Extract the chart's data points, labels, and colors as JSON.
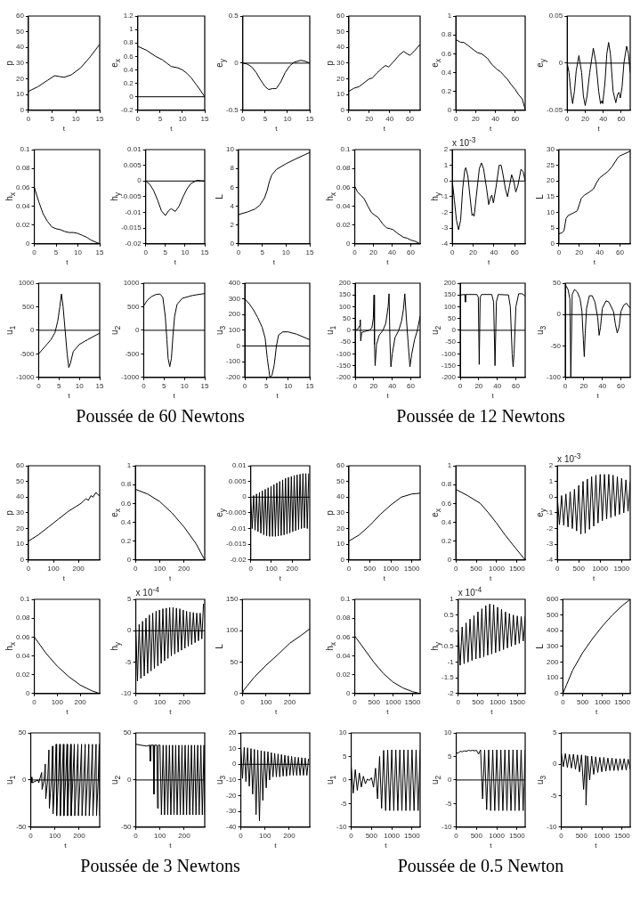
{
  "chart_data": [
    {
      "type": "line",
      "xlabel": "t",
      "ylabel": "p",
      "xlim": [
        0,
        15
      ],
      "xticks": [
        0,
        5,
        10,
        15
      ],
      "ylim": [
        0,
        60
      ],
      "yticks": [
        0,
        10,
        20,
        30,
        40,
        50,
        60
      ],
      "color": "#000000",
      "x": [
        0,
        2,
        4,
        5.5,
        6.5,
        7.5,
        9,
        11,
        13,
        15
      ],
      "values": [
        12,
        15,
        19,
        22,
        21.5,
        21,
        22.5,
        27,
        34,
        42
      ]
    },
    {
      "type": "line",
      "xlabel": "t",
      "ylabel": "e$_{x}$",
      "xlim": [
        0,
        15
      ],
      "xticks": [
        0,
        5,
        10,
        15
      ],
      "ylim": [
        -0.2,
        1.2
      ],
      "yticks": [
        -0.2,
        0,
        0.2,
        0.4,
        0.6,
        0.8,
        1,
        1.2
      ],
      "ref_lines": [
        {
          "axis": "y",
          "value": 0
        }
      ],
      "color": "#000000",
      "x": [
        0,
        2,
        4,
        5.5,
        6.5,
        7.5,
        9,
        10,
        11,
        12,
        13,
        14,
        15
      ],
      "values": [
        0.75,
        0.69,
        0.6,
        0.55,
        0.5,
        0.45,
        0.43,
        0.4,
        0.35,
        0.28,
        0.19,
        0.1,
        0
      ]
    },
    {
      "type": "line",
      "xlabel": "t",
      "ylabel": "e$_{y}$",
      "xlim": [
        0,
        15
      ],
      "xticks": [
        0,
        5,
        10,
        15
      ],
      "ylim": [
        -0.5,
        0.5
      ],
      "yticks": [
        -0.5,
        0,
        0.5
      ],
      "ref_lines": [
        {
          "axis": "y",
          "value": 0
        }
      ],
      "color": "#000000",
      "x": [
        0,
        1,
        2,
        3,
        4,
        5,
        5.8,
        6.7,
        7.5,
        8.5,
        9.5,
        10.5,
        11.5,
        13,
        14,
        15
      ],
      "values": [
        0,
        -0.01,
        -0.04,
        -0.1,
        -0.18,
        -0.25,
        -0.28,
        -0.27,
        -0.27,
        -0.2,
        -0.1,
        -0.03,
        0.01,
        0.03,
        0.02,
        0
      ]
    },
    {
      "type": "line",
      "xlabel": "t",
      "ylabel": "h$_{x}$",
      "xlim": [
        0,
        15
      ],
      "xticks": [
        0,
        5,
        10,
        15
      ],
      "ylim": [
        0,
        0.1
      ],
      "yticks": [
        0,
        0.02,
        0.04,
        0.06,
        0.08,
        0.1
      ],
      "color": "#000000",
      "x": [
        0,
        1,
        2,
        3,
        4,
        5,
        6,
        7,
        8,
        9,
        10,
        11,
        12,
        13,
        14,
        15
      ],
      "values": [
        0.06,
        0.045,
        0.032,
        0.024,
        0.018,
        0.016,
        0.015,
        0.013,
        0.012,
        0.012,
        0.011,
        0.009,
        0.007,
        0.004,
        0.002,
        0
      ]
    },
    {
      "type": "line",
      "xlabel": "t",
      "ylabel": "h$_{y}$",
      "xlim": [
        0,
        15
      ],
      "xticks": [
        0,
        5,
        10,
        15
      ],
      "ylim": [
        -0.02,
        0.01
      ],
      "yticks": [
        -0.02,
        -0.015,
        -0.01,
        -0.005,
        0,
        0.005,
        0.01
      ],
      "ref_lines": [
        {
          "axis": "y",
          "value": 0
        }
      ],
      "color": "#000000",
      "x": [
        0,
        1,
        2,
        3,
        4,
        5,
        5.8,
        6.5,
        7.5,
        8.5,
        9.5,
        10.5,
        11.5,
        13,
        14,
        15
      ],
      "values": [
        0,
        -0.001,
        -0.003,
        -0.006,
        -0.0095,
        -0.011,
        -0.0095,
        -0.0088,
        -0.0097,
        -0.008,
        -0.005,
        -0.0025,
        -0.0008,
        0.0002,
        0.0001,
        0
      ]
    },
    {
      "type": "line",
      "xlabel": "t",
      "ylabel": "L",
      "xlim": [
        0,
        15
      ],
      "xticks": [
        0,
        5,
        10,
        15
      ],
      "ylim": [
        0,
        10
      ],
      "yticks": [
        0,
        2,
        4,
        6,
        8,
        10
      ],
      "color": "#000000",
      "x": [
        0,
        2,
        3.5,
        4.5,
        5.5,
        6,
        6.5,
        7,
        8,
        10,
        12,
        15
      ],
      "values": [
        3.1,
        3.4,
        3.7,
        4.1,
        4.9,
        5.6,
        6.6,
        7.3,
        7.9,
        8.5,
        9,
        9.7
      ]
    },
    {
      "type": "line",
      "xlabel": "t",
      "ylabel": "u$_{1}$",
      "xlim": [
        0,
        15
      ],
      "xticks": [
        0,
        5,
        10,
        15
      ],
      "ylim": [
        -1000,
        1000
      ],
      "yticks": [
        -1000,
        -500,
        0,
        500,
        1000
      ],
      "ref_lines": [
        {
          "axis": "y",
          "value": 0
        }
      ],
      "color": "#000000",
      "x": [
        0,
        1,
        2,
        3,
        4,
        4.7,
        5.2,
        5.6,
        6,
        6.5,
        7,
        7.4,
        7.8,
        8.5,
        10,
        12,
        15
      ],
      "values": [
        -500,
        -400,
        -300,
        -200,
        -50,
        200,
        500,
        770,
        500,
        0,
        -500,
        -790,
        -700,
        -450,
        -300,
        -200,
        -60
      ]
    },
    {
      "type": "line",
      "title": "Poussée de 60 Newtons",
      "xlabel": "t",
      "ylabel": "u$_{2}$",
      "xlim": [
        0,
        15
      ],
      "xticks": [
        0,
        5,
        10,
        15
      ],
      "ylim": [
        -1000,
        1000
      ],
      "yticks": [
        -1000,
        -500,
        0,
        500,
        1000
      ],
      "ref_lines": [
        {
          "axis": "y",
          "value": 0
        }
      ],
      "color": "#000000",
      "x": [
        0,
        1,
        2,
        3,
        4,
        4.7,
        5.3,
        5.7,
        6,
        6.4,
        6.8,
        7.2,
        7.6,
        8.2,
        9.5,
        12,
        15
      ],
      "values": [
        520,
        650,
        720,
        760,
        770,
        700,
        300,
        -200,
        -600,
        -770,
        -600,
        -100,
        300,
        550,
        680,
        740,
        780
      ]
    },
    {
      "type": "line",
      "xlabel": "t",
      "ylabel": "u$_{3}$",
      "xlim": [
        0,
        15
      ],
      "xticks": [
        0,
        5,
        10,
        15
      ],
      "ylim": [
        -200,
        400
      ],
      "yticks": [
        -200,
        -100,
        0,
        100,
        200,
        300,
        400
      ],
      "ref_lines": [
        {
          "axis": "y",
          "value": 0
        }
      ],
      "color": "#000000",
      "x": [
        0,
        1,
        2,
        3,
        4,
        4.7,
        5.2,
        5.8,
        6.3,
        6.8,
        7.3,
        7.8,
        8.8,
        10,
        12,
        15
      ],
      "values": [
        300,
        270,
        230,
        180,
        120,
        50,
        -80,
        -200,
        -185,
        -120,
        0,
        70,
        90,
        90,
        75,
        40
      ]
    },
    {
      "type": "line",
      "xlabel": "t",
      "ylabel": "p",
      "xlim": [
        0,
        70
      ],
      "xticks": [
        0,
        20,
        40,
        60
      ],
      "ylim": [
        0,
        60
      ],
      "yticks": [
        0,
        10,
        20,
        30,
        40,
        50,
        60
      ],
      "color": "#000000",
      "x": [
        0,
        5,
        10,
        15,
        20,
        23,
        28,
        33,
        36,
        39,
        44,
        50,
        54,
        57,
        60,
        64,
        70
      ],
      "values": [
        12,
        14,
        15,
        17.5,
        20,
        20.5,
        24,
        27,
        28.5,
        27.5,
        31,
        35.5,
        37.5,
        36,
        35,
        37.5,
        42
      ]
    },
    {
      "type": "line",
      "xlabel": "t",
      "ylabel": "e$_{x}$",
      "xlim": [
        0,
        70
      ],
      "xticks": [
        0,
        20,
        40,
        60
      ],
      "ylim": [
        0,
        1
      ],
      "yticks": [
        0,
        0.2,
        0.4,
        0.6,
        0.8,
        1
      ],
      "color": "#000000",
      "x": [
        0,
        5,
        8,
        12,
        18,
        22,
        26,
        32,
        36,
        42,
        45,
        52,
        56,
        60,
        63,
        67,
        70
      ],
      "values": [
        0.75,
        0.72,
        0.72,
        0.69,
        0.64,
        0.61,
        0.6,
        0.55,
        0.49,
        0.43,
        0.41,
        0.33,
        0.27,
        0.22,
        0.17,
        0.12,
        0.01
      ]
    },
    {
      "type": "line",
      "xlabel": "t",
      "ylabel": "e$_{y}$",
      "xlim": [
        0,
        70
      ],
      "xticks": [
        0,
        20,
        40,
        60
      ],
      "ylim": [
        -0.05,
        0.05
      ],
      "yticks": [
        -0.05,
        0,
        0.05
      ],
      "ref_lines": [
        {
          "axis": "y",
          "value": 0
        }
      ],
      "color": "#000000",
      "x": [
        0,
        2,
        4,
        6,
        8,
        10,
        13,
        16,
        18,
        20,
        22,
        25,
        29,
        32,
        35,
        37,
        38.5,
        39.5,
        42,
        44,
        46,
        48,
        51,
        54,
        56,
        57.5,
        59,
        61,
        63,
        66,
        68,
        70
      ],
      "values": [
        0,
        -0.01,
        -0.03,
        -0.043,
        -0.03,
        -0.008,
        0.008,
        -0.01,
        -0.035,
        -0.045,
        -0.035,
        -0.01,
        0.016,
        0,
        -0.03,
        -0.043,
        -0.04,
        -0.043,
        -0.02,
        0.01,
        0.022,
        0.01,
        -0.03,
        -0.042,
        -0.033,
        -0.031,
        -0.037,
        -0.025,
        0,
        0.018,
        0.01,
        -0.01
      ]
    },
    {
      "type": "line",
      "xlabel": "t",
      "ylabel": "h$_{x}$",
      "xlim": [
        0,
        70
      ],
      "xticks": [
        0,
        20,
        40,
        60
      ],
      "ylim": [
        0,
        0.1
      ],
      "yticks": [
        0,
        0.02,
        0.04,
        0.06,
        0.08,
        0.1
      ],
      "color": "#000000",
      "x": [
        0,
        3,
        7,
        10,
        14,
        18,
        22,
        25,
        30,
        34,
        38,
        41,
        46,
        52,
        56,
        60,
        64,
        70
      ],
      "values": [
        0.061,
        0.055,
        0.051,
        0.048,
        0.04,
        0.033,
        0.03,
        0.028,
        0.021,
        0.017,
        0.016,
        0.015,
        0.011,
        0.007,
        0.006,
        0.004,
        0.003,
        0
      ]
    },
    {
      "type": "line",
      "xlabel": "t",
      "ylabel": "h$_{y}$",
      "annotations": [
        "x 10$^{-3}$"
      ],
      "xlim": [
        0,
        70
      ],
      "xticks": [
        0,
        20,
        40,
        60
      ],
      "ylim": [
        -4,
        2
      ],
      "yticks": [
        -4,
        -3,
        -2,
        -1,
        0,
        1,
        2
      ],
      "ref_lines": [
        {
          "axis": "y",
          "value": 0
        }
      ],
      "color": "#000000",
      "x": [
        0,
        2,
        4,
        6,
        8,
        10,
        12,
        13,
        15,
        17,
        19,
        20,
        21,
        23,
        26,
        28,
        30,
        33,
        35,
        37,
        38,
        39.5,
        42,
        45,
        47,
        49,
        51,
        53,
        55,
        57,
        59,
        61,
        63,
        66,
        68,
        70
      ],
      "values": [
        0,
        -1.2,
        -2.5,
        -3.1,
        -2.5,
        -0.5,
        0.7,
        0.85,
        0.3,
        -1,
        -2.2,
        -2.1,
        -2.25,
        -1,
        0.8,
        1.15,
        0.8,
        -0.5,
        -1.5,
        -1,
        -0.9,
        -1.4,
        -0.4,
        1,
        1,
        0.3,
        -0.5,
        -1,
        -0.3,
        0.4,
        0,
        -0.7,
        -0.3,
        0.75,
        0.6,
        0
      ]
    },
    {
      "type": "line",
      "xlabel": "t",
      "ylabel": "L",
      "xlim": [
        0,
        70
      ],
      "xticks": [
        0,
        20,
        40,
        60
      ],
      "ylim": [
        0,
        30
      ],
      "yticks": [
        0,
        5,
        10,
        15,
        20,
        25,
        30
      ],
      "color": "#000000",
      "x": [
        0,
        3,
        5,
        7,
        9,
        14,
        18,
        20,
        22,
        25,
        30,
        34,
        37,
        40,
        44,
        48,
        52,
        55,
        58,
        60,
        70
      ],
      "values": [
        3.2,
        3.5,
        4.2,
        8,
        9,
        9.8,
        10.5,
        12.5,
        14.5,
        15.5,
        16.5,
        17.5,
        19.5,
        21,
        22,
        23,
        24.5,
        26,
        27.5,
        28,
        29.5
      ]
    },
    {
      "type": "line",
      "xlabel": "t",
      "ylabel": "u$_{1}$",
      "xlim": [
        0,
        70
      ],
      "xticks": [
        0,
        20,
        40,
        60
      ],
      "ylim": [
        -200,
        200
      ],
      "yticks": [
        -200,
        -150,
        -100,
        -50,
        0,
        50,
        100,
        150,
        200
      ],
      "ref_lines": [
        {
          "axis": "y",
          "value": 0
        }
      ],
      "color": "#000000",
      "x": [
        0,
        3,
        5,
        5.5,
        6,
        7,
        10,
        15,
        18,
        19.5,
        20.3,
        20.8,
        21.5,
        23,
        26,
        30,
        33,
        35.5,
        36.5,
        37.5,
        38.5,
        40,
        43,
        47,
        50,
        52,
        53.5,
        55,
        57,
        59,
        61,
        64,
        67,
        70
      ],
      "values": [
        0,
        5,
        20,
        45,
        -45,
        -10,
        -5,
        0,
        10,
        50,
        150,
        -60,
        -150,
        -60,
        -20,
        0,
        30,
        100,
        155,
        -50,
        -155,
        -100,
        -30,
        0,
        40,
        90,
        155,
        60,
        -50,
        -155,
        -100,
        -40,
        0,
        60
      ]
    },
    {
      "type": "line",
      "title": "Poussée de 12 Newtons",
      "xlabel": "t",
      "ylabel": "u$_{2}$",
      "xlim": [
        0,
        70
      ],
      "xticks": [
        0,
        20,
        40,
        60
      ],
      "ylim": [
        -200,
        200
      ],
      "yticks": [
        -200,
        -150,
        -100,
        -50,
        0,
        50,
        100,
        150,
        200
      ],
      "ref_lines": [
        {
          "axis": "y",
          "value": 0
        }
      ],
      "color": "#000000",
      "x": [
        0,
        5,
        5.6,
        6.2,
        18,
        19.5,
        20.5,
        21.5,
        23,
        34,
        36,
        37.5,
        39,
        41,
        52,
        54,
        56,
        57,
        58,
        60,
        63,
        67,
        70
      ],
      "values": [
        150,
        152,
        120,
        152,
        152,
        140,
        -145,
        140,
        152,
        152,
        120,
        -150,
        120,
        152,
        150,
        100,
        -100,
        -155,
        -100,
        100,
        155,
        155,
        145
      ]
    },
    {
      "type": "line",
      "xlabel": "t",
      "ylabel": "u$_{3}$",
      "xlim": [
        0,
        70
      ],
      "xticks": [
        0,
        20,
        40,
        60
      ],
      "ylim": [
        -100,
        50
      ],
      "yticks": [
        -100,
        -50,
        0,
        50
      ],
      "ref_lines": [
        {
          "axis": "y",
          "value": 0
        }
      ],
      "color": "#000000",
      "x": [
        0,
        3,
        5,
        6,
        7.5,
        10,
        13,
        16,
        18,
        19.5,
        20.5,
        21.5,
        23,
        26,
        29,
        32,
        35,
        36.5,
        38,
        40,
        44,
        47,
        52,
        54,
        56,
        58,
        60,
        63,
        66,
        70
      ],
      "values": [
        48,
        40,
        25,
        -100,
        32,
        40,
        36,
        25,
        5,
        -40,
        -67,
        -30,
        10,
        30,
        30,
        20,
        -5,
        -33,
        -20,
        10,
        22,
        20,
        5,
        -15,
        -29,
        -20,
        5,
        15,
        18,
        10
      ]
    },
    {
      "type": "line",
      "xlabel": "t",
      "ylabel": "p",
      "xlim": [
        0,
        285
      ],
      "xticks": [
        0,
        100,
        200
      ],
      "ylim": [
        0,
        60
      ],
      "yticks": [
        0,
        10,
        20,
        30,
        40,
        50,
        60
      ],
      "color": "#000000",
      "x": [
        0,
        40,
        80,
        120,
        160,
        190,
        210,
        230,
        240,
        250,
        258,
        270,
        278,
        285
      ],
      "values": [
        12,
        16,
        21,
        26,
        31,
        34,
        36,
        39,
        38,
        41,
        40,
        43,
        41.5,
        41
      ]
    },
    {
      "type": "line",
      "xlabel": "t",
      "ylabel": "e$_{x}$",
      "xlim": [
        0,
        285
      ],
      "xticks": [
        0,
        100,
        200
      ],
      "ylim": [
        0,
        1
      ],
      "yticks": [
        0,
        0.2,
        0.4,
        0.6,
        0.8,
        1
      ],
      "color": "#000000",
      "x": [
        0,
        50,
        100,
        150,
        200,
        250,
        285
      ],
      "values": [
        0.75,
        0.7,
        0.62,
        0.5,
        0.35,
        0.17,
        0
      ]
    },
    {
      "type": "line",
      "xlabel": "t",
      "ylabel": "e$_{y}$",
      "xlim": [
        0,
        285
      ],
      "xticks": [
        0,
        100,
        200
      ],
      "ylim": [
        -0.02,
        0.01
      ],
      "yticks": [
        -0.02,
        -0.015,
        -0.01,
        -0.005,
        0,
        0.005,
        0.01
      ],
      "ref_lines": [
        {
          "axis": "y",
          "value": 0
        }
      ],
      "color": "#000000",
      "x": [
        0,
        7,
        14,
        21,
        28,
        35,
        42,
        49,
        56,
        63,
        70,
        77,
        84,
        91,
        98,
        105,
        112,
        119,
        126,
        133,
        140,
        147,
        154,
        161,
        168,
        175,
        182,
        189,
        196,
        203,
        210,
        217,
        224,
        231,
        238,
        245,
        252,
        259,
        266,
        273,
        280
      ],
      "values": [
        0,
        -0.01,
        0.0005,
        -0.0105,
        0.001,
        -0.011,
        0.0015,
        -0.0115,
        0.002,
        -0.012,
        0.0025,
        -0.0123,
        0.003,
        -0.0125,
        0.0035,
        -0.0125,
        0.004,
        -0.0125,
        0.0045,
        -0.0124,
        0.005,
        -0.0122,
        0.0055,
        -0.012,
        0.006,
        -0.0117,
        0.0063,
        -0.0114,
        0.0066,
        -0.011,
        0.0069,
        -0.0107,
        0.0071,
        -0.0103,
        0.0073,
        -0.01,
        0.0075,
        -0.0098,
        0.0075,
        -0.01,
        0.0075
      ]
    },
    {
      "type": "line",
      "xlabel": "t",
      "ylabel": "h$_{x}$",
      "xlim": [
        0,
        285
      ],
      "xticks": [
        0,
        100,
        200
      ],
      "ylim": [
        0,
        0.1
      ],
      "yticks": [
        0,
        0.02,
        0.04,
        0.06,
        0.08,
        0.1
      ],
      "color": "#000000",
      "x": [
        0,
        50,
        100,
        150,
        200,
        250,
        285
      ],
      "values": [
        0.06,
        0.043,
        0.029,
        0.018,
        0.009,
        0.003,
        0
      ]
    },
    {
      "type": "line",
      "xlabel": "t",
      "ylabel": "h$_{y}$",
      "annotations": [
        "x 10$^{-4}$"
      ],
      "xlim": [
        0,
        285
      ],
      "xticks": [
        0,
        100,
        200
      ],
      "ylim": [
        -10,
        5
      ],
      "yticks": [
        -10,
        -5,
        0,
        5
      ],
      "ref_lines": [
        {
          "axis": "y",
          "value": 0
        }
      ],
      "color": "#000000",
      "x": [
        0,
        7,
        14,
        21,
        28,
        35,
        42,
        49,
        56,
        63,
        70,
        77,
        84,
        91,
        98,
        105,
        112,
        119,
        126,
        133,
        140,
        147,
        154,
        161,
        168,
        175,
        182,
        189,
        196,
        203,
        210,
        217,
        224,
        231,
        238,
        245,
        252,
        259,
        266,
        273,
        280
      ],
      "values": [
        0.5,
        -8,
        1,
        -7.6,
        1.5,
        -7.2,
        2,
        -6.8,
        2.5,
        -6.4,
        2.8,
        -6,
        3.1,
        -5.6,
        3.3,
        -5.2,
        3.5,
        -4.8,
        3.6,
        -4.4,
        3.7,
        -4,
        3.7,
        -3.7,
        3.6,
        -3.4,
        3.5,
        -3.1,
        3.3,
        -2.8,
        3.1,
        -2.5,
        3,
        -2.2,
        2.9,
        -1.9,
        2.8,
        -1.6,
        2.8,
        -1.3,
        4.3
      ]
    },
    {
      "type": "line",
      "xlabel": "t",
      "ylabel": "L",
      "xlim": [
        0,
        285
      ],
      "xticks": [
        0,
        100,
        200
      ],
      "ylim": [
        0,
        150
      ],
      "yticks": [
        0,
        50,
        100,
        150
      ],
      "color": "#000000",
      "x": [
        0,
        5,
        20,
        50,
        100,
        150,
        200,
        250,
        285
      ],
      "values": [
        0,
        5,
        12,
        26,
        45,
        62,
        80,
        93,
        103
      ]
    },
    {
      "type": "line",
      "xlabel": "t",
      "ylabel": "u$_{1}$",
      "xlim": [
        0,
        285
      ],
      "xticks": [
        0,
        100,
        200
      ],
      "ylim": [
        -50,
        50
      ],
      "yticks": [
        -50,
        0,
        50
      ],
      "ref_lines": [
        {
          "axis": "y",
          "value": 0
        }
      ],
      "color": "#000000",
      "x": [
        0,
        3,
        5,
        30,
        33,
        45,
        47,
        55,
        60,
        62,
        70,
        75,
        77,
        85,
        90,
        92,
        100,
        105,
        107,
        114,
        120,
        122,
        129,
        135,
        137,
        144,
        150,
        152,
        159,
        165,
        167,
        174,
        180,
        182,
        189,
        195,
        197,
        204,
        210,
        212,
        219,
        225,
        227,
        234,
        240,
        242,
        249,
        255,
        257,
        264,
        270,
        272,
        279,
        283,
        285
      ],
      "values": [
        0,
        3,
        -3,
        0,
        -3,
        8,
        -10,
        0,
        17,
        -20,
        0,
        32,
        -30,
        0,
        36,
        -36,
        0,
        38,
        -38,
        0,
        38,
        -38,
        0,
        38,
        -38,
        0,
        38,
        -38,
        0,
        38,
        -38,
        0,
        38,
        -38,
        0,
        38,
        -38,
        0,
        38,
        -38,
        0,
        38,
        -38,
        0,
        38,
        -38,
        0,
        38,
        -38,
        0,
        38,
        -38,
        0,
        38,
        -38
      ]
    },
    {
      "type": "line",
      "title": "Poussée de 3 Newtons",
      "xlabel": "t",
      "ylabel": "u$_{2}$",
      "xlim": [
        0,
        285
      ],
      "xticks": [
        0,
        100,
        200
      ],
      "ylim": [
        -50,
        50
      ],
      "yticks": [
        -50,
        0,
        50
      ],
      "ref_lines": [
        {
          "axis": "y",
          "value": 0
        }
      ],
      "color": "#000000",
      "x": [
        0,
        20,
        45,
        57,
        60,
        63,
        72,
        75,
        78,
        87,
        90,
        93,
        100,
        106,
        113,
        119,
        126,
        132,
        139,
        145,
        152,
        158,
        165,
        171,
        178,
        184,
        191,
        197,
        204,
        210,
        217,
        223,
        230,
        236,
        243,
        249,
        256,
        262,
        269,
        275,
        282,
        285
      ],
      "values": [
        38,
        37,
        36,
        37,
        20,
        37,
        37,
        -15,
        37,
        37,
        -30,
        37,
        37,
        -37,
        37,
        -37,
        37,
        -37,
        37,
        -37,
        37,
        -37,
        37,
        -37,
        37,
        -37,
        37,
        -37,
        37,
        -37,
        37,
        -37,
        37,
        -37,
        37,
        -37,
        37,
        -37,
        37,
        -37,
        37,
        -37
      ]
    },
    {
      "type": "line",
      "xlabel": "t",
      "ylabel": "u$_{3}$",
      "xlim": [
        0,
        285
      ],
      "xticks": [
        0,
        100,
        200
      ],
      "ylim": [
        -40,
        20
      ],
      "yticks": [
        -40,
        -30,
        -20,
        -10,
        0,
        10,
        20
      ],
      "ref_lines": [
        {
          "axis": "y",
          "value": 0
        }
      ],
      "color": "#000000",
      "x": [
        0,
        7,
        14,
        21,
        28,
        35,
        42,
        49,
        56,
        63,
        70,
        77,
        84,
        91,
        98,
        105,
        112,
        119,
        126,
        133,
        140,
        147,
        154,
        161,
        168,
        175,
        182,
        189,
        196,
        203,
        210,
        217,
        224,
        231,
        238,
        245,
        252,
        259,
        266,
        273,
        280
      ],
      "values": [
        11,
        -9,
        10.8,
        -11,
        10.5,
        -14,
        10,
        -19,
        9.5,
        -32,
        9,
        -36,
        8.7,
        -23,
        8.3,
        -15,
        8,
        -10,
        7.5,
        -8,
        7,
        -8,
        6.6,
        -8,
        6.2,
        -7.5,
        5.8,
        -7.5,
        5.4,
        -7,
        5,
        -7,
        4.7,
        -7,
        4.4,
        -7,
        4.2,
        -7,
        4,
        -7,
        3.5
      ]
    },
    {
      "type": "line",
      "xlabel": "t",
      "ylabel": "p",
      "xlim": [
        0,
        1700
      ],
      "xticks": [
        0,
        500,
        1000,
        1500
      ],
      "ylim": [
        0,
        60
      ],
      "yticks": [
        0,
        10,
        20,
        30,
        40,
        50,
        60
      ],
      "color": "#000000",
      "x": [
        0,
        250,
        500,
        750,
        1000,
        1250,
        1500,
        1700
      ],
      "values": [
        12,
        16,
        22,
        29,
        35,
        40,
        42,
        42.5
      ]
    },
    {
      "type": "line",
      "xlabel": "t",
      "ylabel": "e$_{x}$",
      "xlim": [
        0,
        1700
      ],
      "xticks": [
        0,
        500,
        1000,
        1500
      ],
      "ylim": [
        0,
        1
      ],
      "yticks": [
        0,
        0.2,
        0.4,
        0.6,
        0.8,
        1
      ],
      "color": "#000000",
      "x": [
        0,
        300,
        600,
        800,
        1000,
        1200,
        1400,
        1700
      ],
      "values": [
        0.75,
        0.68,
        0.6,
        0.5,
        0.39,
        0.27,
        0.16,
        0
      ]
    },
    {
      "type": "line",
      "xlabel": "t",
      "ylabel": "e$_{y}$",
      "annotations": [
        "x 10$^{-3}$"
      ],
      "xlim": [
        0,
        1700
      ],
      "xticks": [
        0,
        500,
        1000,
        1500
      ],
      "ylim": [
        -4,
        2
      ],
      "yticks": [
        -4,
        -3,
        -2,
        -1,
        0,
        1,
        2
      ],
      "color": "#000000",
      "x": [
        0,
        50,
        100,
        150,
        200,
        250,
        300,
        350,
        400,
        450,
        500,
        550,
        600,
        650,
        700,
        750,
        800,
        850,
        900,
        950,
        1000,
        1050,
        1100,
        1150,
        1200,
        1250,
        1300,
        1350,
        1400,
        1450,
        1500,
        1550,
        1600,
        1650,
        1700
      ],
      "values": [
        0,
        -1.75,
        0.1,
        -1.8,
        0.2,
        -1.9,
        0.35,
        -2,
        0.5,
        -2.15,
        0.75,
        -2.35,
        1,
        -2.3,
        1.15,
        -2.05,
        1.3,
        -1.85,
        1.4,
        -1.65,
        1.45,
        -1.5,
        1.45,
        -1.4,
        1.45,
        -1.3,
        1.4,
        -1.2,
        1.3,
        -1.1,
        1.2,
        -1,
        1.1,
        -0.9,
        1
      ]
    },
    {
      "type": "line",
      "xlabel": "t",
      "ylabel": "h$_{x}$",
      "xlim": [
        0,
        1700
      ],
      "xticks": [
        0,
        500,
        1000,
        1500
      ],
      "ylim": [
        0,
        0.1
      ],
      "yticks": [
        0,
        0.02,
        0.04,
        0.06,
        0.08,
        0.1
      ],
      "color": "#000000",
      "x": [
        0,
        250,
        500,
        750,
        1000,
        1250,
        1500,
        1700
      ],
      "values": [
        0.061,
        0.047,
        0.033,
        0.021,
        0.012,
        0.006,
        0.002,
        0
      ]
    },
    {
      "type": "line",
      "xlabel": "t",
      "ylabel": "h$_{y}$",
      "annotations": [
        "x 10$^{-4}$"
      ],
      "xlim": [
        0,
        1700
      ],
      "xticks": [
        0,
        500,
        1000,
        1500
      ],
      "ylim": [
        -2,
        1
      ],
      "yticks": [
        -2,
        -1.5,
        -1,
        -0.5,
        0,
        0.5,
        1
      ],
      "color": "#000000",
      "x": [
        0,
        50,
        100,
        150,
        200,
        250,
        300,
        350,
        400,
        450,
        500,
        550,
        600,
        650,
        700,
        750,
        800,
        850,
        900,
        950,
        1000,
        1050,
        1100,
        1150,
        1200,
        1250,
        1300,
        1350,
        1400,
        1450,
        1500,
        1550,
        1600,
        1650,
        1700
      ],
      "values": [
        0,
        -1.1,
        0.12,
        -1.05,
        0.25,
        -1,
        0.37,
        -0.95,
        0.48,
        -0.9,
        0.6,
        -0.87,
        0.7,
        -0.83,
        0.8,
        -0.78,
        0.85,
        -0.74,
        0.83,
        -0.7,
        0.75,
        -0.65,
        0.68,
        -0.6,
        0.6,
        -0.55,
        0.55,
        -0.5,
        0.5,
        -0.45,
        0.47,
        -0.4,
        0.45,
        -0.33,
        0.45
      ]
    },
    {
      "type": "line",
      "xlabel": "t",
      "ylabel": "L",
      "xlim": [
        0,
        1700
      ],
      "xticks": [
        0,
        500,
        1000,
        1500
      ],
      "ylim": [
        0,
        600
      ],
      "yticks": [
        0,
        100,
        200,
        300,
        400,
        500,
        600
      ],
      "color": "#000000",
      "x": [
        0,
        100,
        250,
        500,
        750,
        1000,
        1250,
        1500,
        1700
      ],
      "values": [
        0,
        60,
        150,
        260,
        350,
        430,
        500,
        560,
        600
      ]
    },
    {
      "type": "line",
      "xlabel": "t",
      "ylabel": "u$_{1}$",
      "xlim": [
        0,
        1700
      ],
      "xticks": [
        0,
        500,
        1000,
        1500
      ],
      "ylim": [
        -10,
        10
      ],
      "yticks": [
        -10,
        -5,
        0,
        5,
        10
      ],
      "color": "#000000",
      "x": [
        0,
        50,
        100,
        150,
        200,
        250,
        300,
        350,
        400,
        450,
        500,
        550,
        600,
        650,
        700,
        750,
        800,
        850,
        900,
        950,
        1000,
        1050,
        1100,
        1150,
        1200,
        1250,
        1300,
        1350,
        1400,
        1450,
        1500,
        1550,
        1600,
        1650,
        1700
      ],
      "values": [
        2.8,
        -2.8,
        2.2,
        -2.2,
        1.5,
        -1.5,
        0.8,
        -0.8,
        0.2,
        -0.1,
        0.5,
        -1.5,
        2.5,
        -4,
        5,
        -6,
        6.3,
        -6.5,
        6.4,
        -6.5,
        6.4,
        -6.5,
        6.4,
        -6.5,
        6.4,
        -6.5,
        6.4,
        -6.5,
        6.4,
        -6.5,
        6.4,
        -6.5,
        6.4,
        -6.5,
        6.4
      ]
    },
    {
      "type": "line",
      "title": "Poussée de 0.5 Newton",
      "xlabel": "t",
      "ylabel": "u$_{2}$",
      "xlim": [
        0,
        1700
      ],
      "xticks": [
        0,
        500,
        1000,
        1500
      ],
      "ylim": [
        -10,
        10
      ],
      "yticks": [
        -10,
        -5,
        0,
        5,
        10
      ],
      "ref_lines": [
        {
          "axis": "y",
          "value": 0
        }
      ],
      "color": "#000000",
      "x": [
        0,
        50,
        100,
        150,
        200,
        250,
        300,
        350,
        400,
        450,
        500,
        550,
        600,
        650,
        700,
        750,
        800,
        850,
        900,
        950,
        1000,
        1050,
        1100,
        1150,
        1200,
        1250,
        1300,
        1350,
        1400,
        1450,
        1500,
        1550,
        1600,
        1650,
        1700
      ],
      "values": [
        5.8,
        5.7,
        6.1,
        6,
        6.2,
        6.1,
        6.3,
        6.2,
        6.3,
        6.2,
        6.3,
        5.5,
        6.4,
        -4,
        6.4,
        -6.3,
        6.4,
        -6.5,
        6.4,
        -6.5,
        6.4,
        -6.5,
        6.4,
        -6.5,
        6.4,
        -6.5,
        6.4,
        -6.5,
        6.4,
        -6.5,
        6.4,
        -6.5,
        6.4,
        -6.5,
        6.4
      ]
    },
    {
      "type": "line",
      "xlabel": "t",
      "ylabel": "u$_{3}$",
      "xlim": [
        0,
        1700
      ],
      "xticks": [
        0,
        500,
        1000,
        1500
      ],
      "ylim": [
        -10,
        5
      ],
      "yticks": [
        -10,
        -5,
        0,
        5
      ],
      "color": "#000000",
      "x": [
        0,
        50,
        100,
        150,
        200,
        250,
        300,
        350,
        400,
        450,
        500,
        550,
        600,
        610,
        650,
        700,
        750,
        800,
        850,
        900,
        950,
        1000,
        1050,
        1100,
        1150,
        1200,
        1250,
        1300,
        1350,
        1400,
        1450,
        1500,
        1550,
        1600,
        1650,
        1700
      ],
      "values": [
        1.8,
        -0.4,
        1.7,
        -0.5,
        1.6,
        -0.6,
        1.6,
        -0.8,
        1.5,
        -1.2,
        1.5,
        -4,
        1.4,
        -6.5,
        1.3,
        -2.5,
        1.3,
        -1.6,
        1.2,
        -1.3,
        1.1,
        -1.2,
        1.1,
        -1.1,
        1,
        -1,
        1,
        -1,
        0.9,
        -1,
        0.9,
        -0.9,
        0.9,
        -0.9,
        0.8,
        -0.8
      ]
    }
  ]
}
